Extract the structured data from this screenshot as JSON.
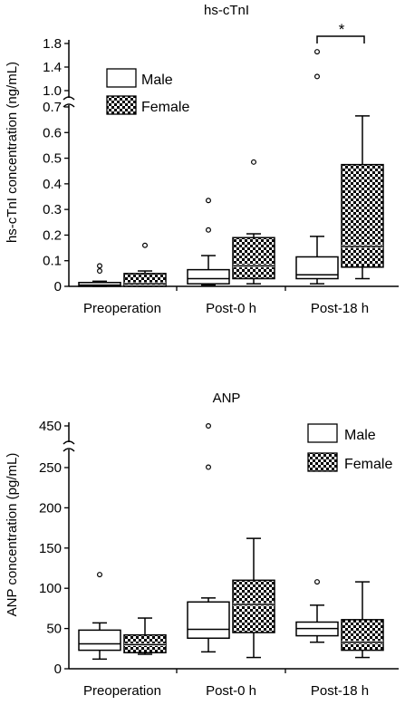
{
  "chart_data": [
    {
      "type": "box",
      "title": "hs-cTnI",
      "ylabel": "hs-cTnI concentration (ng/mL)",
      "xlabel": "",
      "categories": [
        "Preoperation",
        "Post-0 h",
        "Post-18 h"
      ],
      "y_axis": {
        "broken": true,
        "lower_range": [
          0,
          0.7
        ],
        "upper_range": [
          1.0,
          1.8
        ],
        "ticks_lower": [
          "0",
          "0.1",
          "0.2",
          "0.3",
          "0.4",
          "0.5",
          "0.6",
          "0.7"
        ],
        "ticks_upper": [
          "1.0",
          "1.4",
          "1.8"
        ]
      },
      "legend": [
        "Male",
        "Female"
      ],
      "legend_position": "upper-left",
      "series": [
        {
          "name": "Male",
          "fill": "white",
          "boxes": [
            {
              "category": "Preoperation",
              "whislo": 0.0,
              "q1": 0.0,
              "med": 0.005,
              "q3": 0.015,
              "whishi": 0.02,
              "fliers": [
                0.06,
                0.08
              ]
            },
            {
              "category": "Post-0 h",
              "whislo": 0.005,
              "q1": 0.01,
              "med": 0.03,
              "q3": 0.065,
              "whishi": 0.12,
              "fliers": [
                0.22,
                0.335
              ]
            },
            {
              "category": "Post-18 h",
              "whislo": 0.01,
              "q1": 0.03,
              "med": 0.045,
              "q3": 0.115,
              "whishi": 0.195,
              "fliers": [
                1.24,
                1.66
              ]
            }
          ]
        },
        {
          "name": "Female",
          "fill": "checkered",
          "boxes": [
            {
              "category": "Preoperation",
              "whislo": 0.0,
              "q1": 0.0,
              "med": 0.01,
              "q3": 0.05,
              "whishi": 0.06,
              "fliers": [
                0.16
              ]
            },
            {
              "category": "Post-0 h",
              "whislo": 0.01,
              "q1": 0.03,
              "med": 0.08,
              "q3": 0.19,
              "whishi": 0.205,
              "fliers": [
                0.485
              ]
            },
            {
              "category": "Post-18 h",
              "whislo": 0.03,
              "q1": 0.075,
              "med": 0.155,
              "q3": 0.475,
              "whishi": 0.665,
              "fliers": []
            }
          ]
        }
      ],
      "annotations": [
        {
          "text": "*",
          "between": [
            "Post-18 h Male",
            "Post-18 h Female"
          ]
        }
      ]
    },
    {
      "type": "box",
      "title": "ANP",
      "ylabel": "ANP concentration (pg/mL)",
      "xlabel": "",
      "categories": [
        "Preoperation",
        "Post-0 h",
        "Post-18 h"
      ],
      "y_axis": {
        "broken": true,
        "lower_range": [
          0,
          250
        ],
        "upper_range": [
          450,
          450
        ],
        "ticks_lower": [
          "0",
          "50",
          "100",
          "150",
          "200",
          "250"
        ],
        "ticks_upper": [
          "450"
        ]
      },
      "legend": [
        "Male",
        "Female"
      ],
      "legend_position": "upper-right",
      "series": [
        {
          "name": "Male",
          "fill": "white",
          "boxes": [
            {
              "category": "Preoperation",
              "whislo": 12,
              "q1": 23,
              "med": 31,
              "q3": 48,
              "whishi": 57,
              "fliers": [
                117
              ]
            },
            {
              "category": "Post-0 h",
              "whislo": 21,
              "q1": 38,
              "med": 49,
              "q3": 83,
              "whishi": 88,
              "fliers": [
                252,
                450
              ]
            },
            {
              "category": "Post-18 h",
              "whislo": 33,
              "q1": 41,
              "med": 50,
              "q3": 58,
              "whishi": 79,
              "fliers": [
                108
              ]
            }
          ]
        },
        {
          "name": "Female",
          "fill": "checkered",
          "boxes": [
            {
              "category": "Preoperation",
              "whislo": 18,
              "q1": 20,
              "med": 30,
              "q3": 42,
              "whishi": 63,
              "fliers": []
            },
            {
              "category": "Post-0 h",
              "whislo": 14,
              "q1": 45,
              "med": 80,
              "q3": 110,
              "whishi": 162,
              "fliers": []
            },
            {
              "category": "Post-18 h",
              "whislo": 14,
              "q1": 23,
              "med": 33,
              "q3": 61,
              "whishi": 108,
              "fliers": []
            }
          ]
        }
      ],
      "annotations": []
    }
  ]
}
